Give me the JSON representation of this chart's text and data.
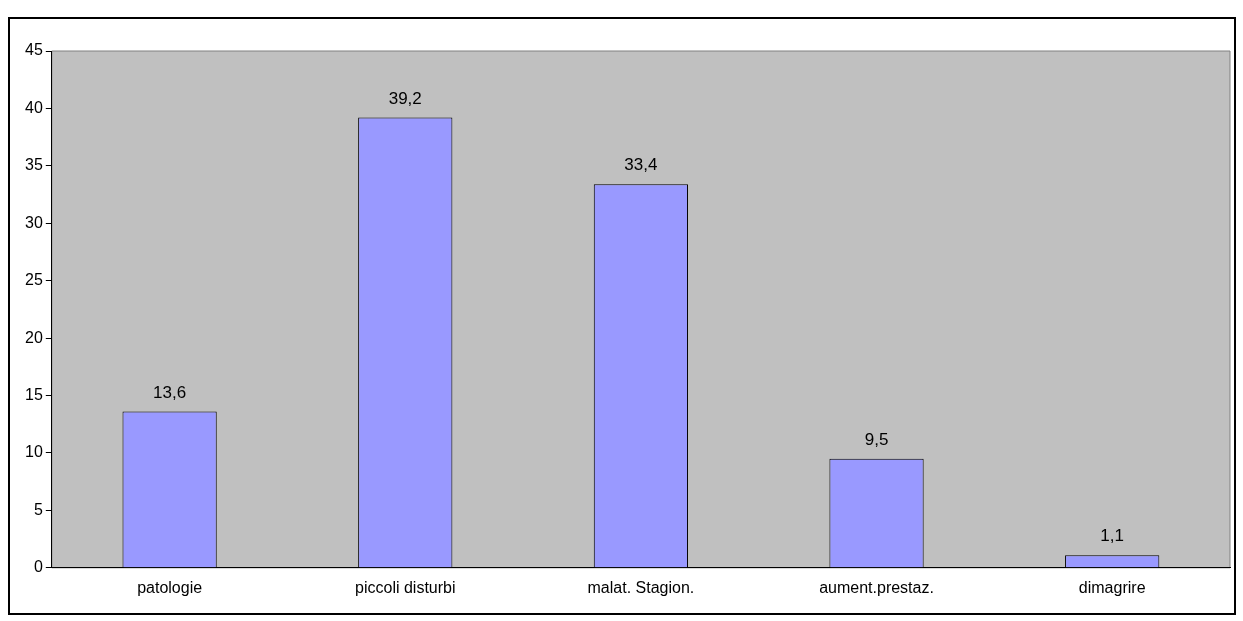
{
  "chart_data": {
    "type": "bar",
    "categories": [
      "patologie",
      "piccoli disturbi",
      "malat. Stagion.",
      "aument.prestaz.",
      "dimagrire"
    ],
    "values": [
      13.6,
      39.2,
      33.4,
      9.5,
      1.1
    ],
    "value_labels": [
      "13,6",
      "39,2",
      "33,4",
      "9,5",
      "1,1"
    ],
    "color": "#9999ff",
    "ylim": [
      0,
      45
    ],
    "yticks": [
      0,
      5,
      10,
      15,
      20,
      25,
      30,
      35,
      40,
      45
    ],
    "grid": false,
    "legend": false
  }
}
